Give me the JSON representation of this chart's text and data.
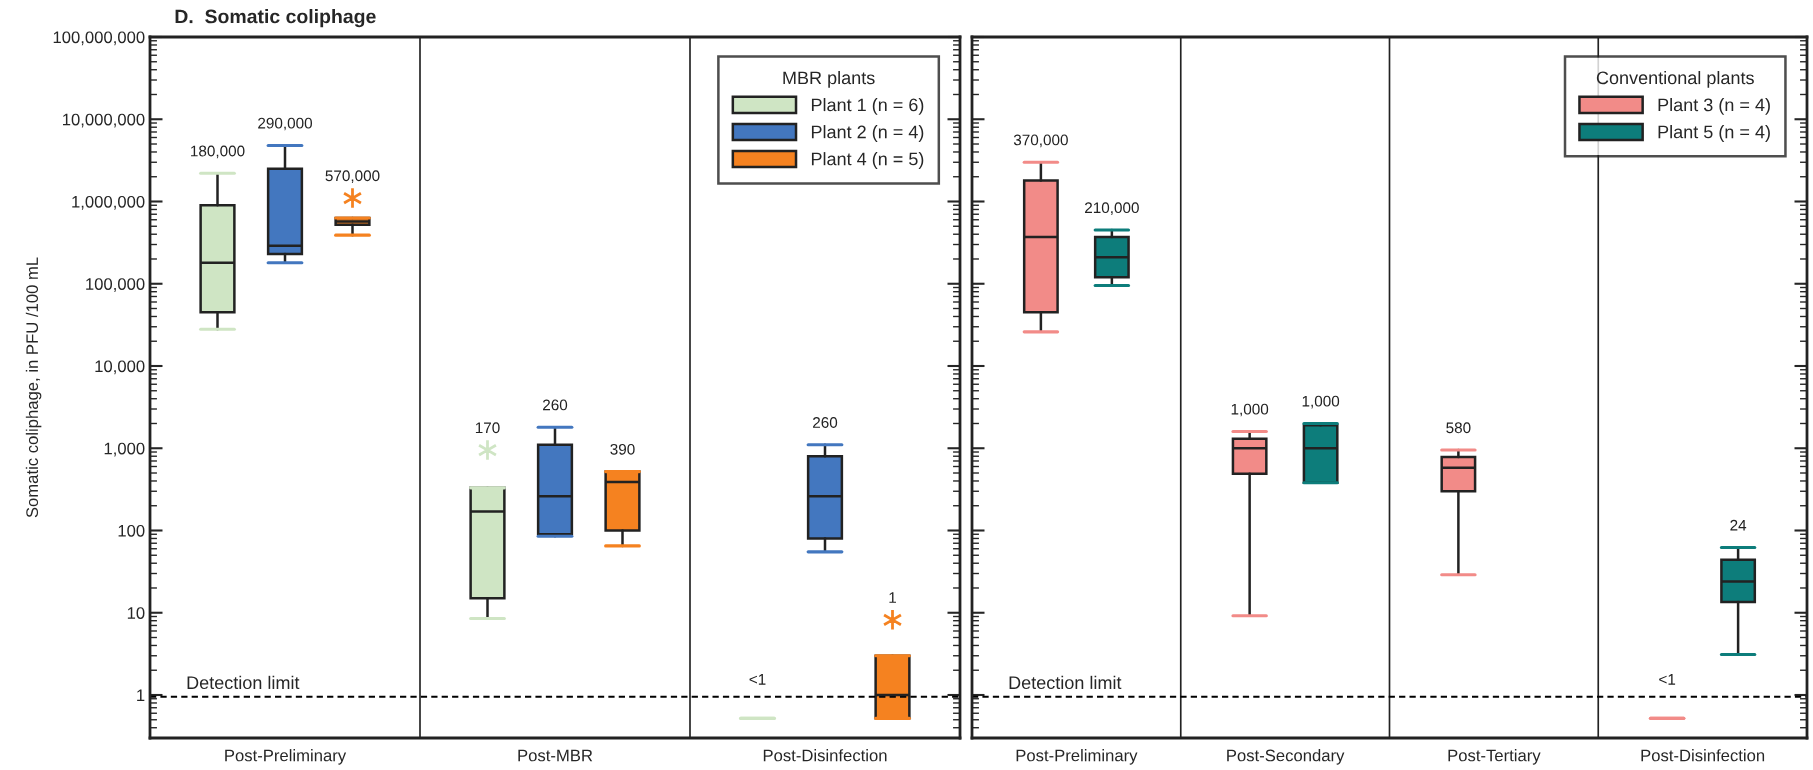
{
  "chart_data": [
    {
      "type": "box",
      "title": "D.  Somatic coliphage",
      "ylabel": "Somatic coliphage, in PFU /100 mL",
      "legend_title": "MBR plants",
      "legend": "top right",
      "log": true,
      "categories": [
        "Post-Preliminary",
        "Post-MBR",
        "Post-Disinfection"
      ],
      "ylim": [
        0.3,
        100000000
      ],
      "yticks": [
        1,
        10,
        100,
        {
          "value": 1000,
          "label": "1,000"
        },
        {
          "value": 10000,
          "label": "10,000"
        },
        {
          "value": 100000,
          "label": "100,000"
        },
        {
          "value": 1000000,
          "label": "1,000,000"
        },
        {
          "value": 10000000,
          "label": "10,000,000"
        },
        {
          "value": 100000000,
          "label": "100,000,000"
        }
      ],
      "ref_lines": [
        {
          "axis": "y",
          "value": 0.95,
          "label": "Detection limit",
          "line_style": "dashed",
          "color": "#000000"
        }
      ],
      "series": [
        {
          "name": "Plant 1 (n = 6)",
          "color": "#cfe5c4",
          "value_labels": [
            "180,000",
            "170",
            "<1"
          ],
          "boxes": [
            {
              "low": 28000,
              "q1": 45000,
              "median": 180000,
              "q3": 900000,
              "high": 2200000
            },
            {
              "low": 8.5,
              "q1": 15,
              "median": 170,
              "q3": 330,
              "high": 330,
              "outliers": [
                950
              ]
            },
            {
              "low": 0.52,
              "q1": 0.52,
              "median": 0.52,
              "q3": 0.52,
              "high": 0.52
            }
          ]
        },
        {
          "name": "Plant 2 (n = 4)",
          "color": "#4377bf",
          "value_labels": [
            "290,000",
            "260",
            "260"
          ],
          "boxes": [
            {
              "low": 180000,
              "q1": 230000,
              "median": 290000,
              "q3": 2500000,
              "high": 4800000
            },
            {
              "low": 85,
              "q1": 90,
              "median": 260,
              "q3": 1100,
              "high": 1800
            },
            {
              "low": 55,
              "q1": 80,
              "median": 260,
              "q3": 800,
              "high": 1100
            }
          ]
        },
        {
          "name": "Plant 4 (n = 5)",
          "color": "#f58220",
          "value_labels": [
            "570,000",
            "390",
            "1"
          ],
          "boxes": [
            {
              "low": 390000,
              "q1": 520000,
              "median": 570000,
              "q3": 630000,
              "high": 630000,
              "outliers": [
                1100000
              ]
            },
            {
              "low": 65,
              "q1": 100,
              "median": 390,
              "q3": 520,
              "high": 520
            },
            {
              "low": 0.52,
              "q1": 0.52,
              "median": 1,
              "q3": 3,
              "high": 3,
              "outliers": [
                8.2
              ]
            }
          ]
        }
      ]
    },
    {
      "type": "box",
      "legend_title": "Conventional plants",
      "legend": "top right",
      "log": true,
      "tick_labels": "x",
      "categories": [
        "Post-Preliminary",
        "Post-Secondary",
        "Post-Tertiary",
        "Post-Disinfection"
      ],
      "ylim": [
        0.3,
        100000000
      ],
      "yticks": [
        {
          "value": 1,
          "label": null
        },
        {
          "value": 10,
          "label": null
        },
        {
          "value": 100,
          "label": null
        },
        {
          "value": 1000,
          "label": null
        },
        {
          "value": 10000,
          "label": null
        },
        {
          "value": 100000,
          "label": null
        },
        {
          "value": 1000000,
          "label": null
        },
        {
          "value": 10000000,
          "label": null
        },
        {
          "value": 100000000,
          "label": null
        }
      ],
      "ref_lines": [
        {
          "axis": "y",
          "value": 0.95,
          "label": "Detection limit",
          "line_style": "dashed",
          "color": "#000000"
        }
      ],
      "series": [
        {
          "name": "Plant 3 (n = 4)",
          "color": "#f28b88",
          "value_labels": [
            "370,000",
            "1,000",
            "580",
            "<1"
          ],
          "boxes": [
            {
              "low": 26000,
              "q1": 45000,
              "median": 370000,
              "q3": 1800000,
              "high": 3000000
            },
            {
              "low": 9.2,
              "q1": 490,
              "median": 1000,
              "q3": 1300,
              "high": 1600
            },
            {
              "low": 29,
              "q1": 300,
              "median": 580,
              "q3": 780,
              "high": 950
            },
            {
              "low": 0.52,
              "q1": 0.52,
              "median": 0.52,
              "q3": 0.52,
              "high": 0.52
            }
          ]
        },
        {
          "name": "Plant 5 (n = 4)",
          "color": "#0d7d7b",
          "value_labels": [
            "210,000",
            "1,000",
            null,
            "24"
          ],
          "boxes": [
            {
              "low": 95000,
              "q1": 120000,
              "median": 210000,
              "q3": 370000,
              "high": 450000
            },
            {
              "low": 380,
              "q1": 380,
              "median": 1000,
              "q3": 1900,
              "high": 2000
            },
            null,
            {
              "low": 3.1,
              "q1": 13.5,
              "median": 24,
              "q3": 44,
              "high": 62
            }
          ]
        }
      ]
    }
  ]
}
